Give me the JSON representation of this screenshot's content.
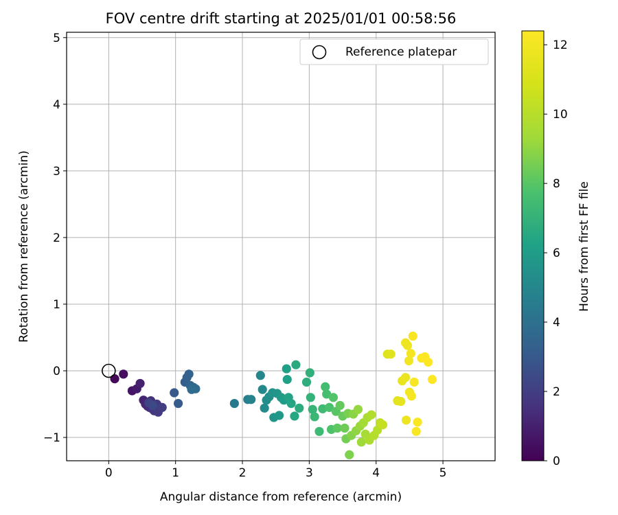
{
  "chart_data": {
    "type": "scatter",
    "title": "FOV centre drift starting at 2025/01/01 00:58:56",
    "xlabel": "Angular distance from reference (arcmin)",
    "ylabel": "Rotation from reference (arcmin)",
    "xlim": [
      -0.63,
      5.78
    ],
    "ylim": [
      -1.35,
      5.08
    ],
    "xticks": [
      0,
      1,
      2,
      3,
      4,
      5
    ],
    "yticks": [
      -1,
      0,
      1,
      2,
      3,
      4,
      5
    ],
    "grid": true,
    "legend": {
      "placement": "top-right",
      "entries": [
        "Reference platepar"
      ]
    },
    "colorbar": {
      "label": "Hours from first FF file",
      "range": [
        0,
        12.4
      ],
      "ticks": [
        0,
        2,
        4,
        6,
        8,
        10,
        12
      ],
      "colormap": "viridis"
    },
    "reference_point": {
      "x": 0,
      "y": 0
    },
    "points": [
      {
        "x": 0.09,
        "y": -0.12,
        "h": 0.2
      },
      {
        "x": 0.22,
        "y": -0.05,
        "h": 0.4
      },
      {
        "x": 0.35,
        "y": -0.3,
        "h": 0.6
      },
      {
        "x": 0.42,
        "y": -0.27,
        "h": 0.8
      },
      {
        "x": 0.47,
        "y": -0.19,
        "h": 1.0
      },
      {
        "x": 0.52,
        "y": -0.44,
        "h": 1.1
      },
      {
        "x": 0.55,
        "y": -0.5,
        "h": 1.2
      },
      {
        "x": 0.58,
        "y": -0.53,
        "h": 1.3
      },
      {
        "x": 0.61,
        "y": -0.55,
        "h": 1.4
      },
      {
        "x": 0.63,
        "y": -0.45,
        "h": 1.5
      },
      {
        "x": 0.65,
        "y": -0.57,
        "h": 1.6
      },
      {
        "x": 0.68,
        "y": -0.6,
        "h": 1.7
      },
      {
        "x": 0.72,
        "y": -0.5,
        "h": 1.8
      },
      {
        "x": 0.74,
        "y": -0.62,
        "h": 1.9
      },
      {
        "x": 0.8,
        "y": -0.55,
        "h": 2.0
      },
      {
        "x": 0.6,
        "y": -0.48,
        "h": 2.2
      },
      {
        "x": 0.66,
        "y": -0.52,
        "h": 2.4
      },
      {
        "x": 0.98,
        "y": -0.33,
        "h": 3.0
      },
      {
        "x": 1.04,
        "y": -0.49,
        "h": 3.1
      },
      {
        "x": 1.14,
        "y": -0.17,
        "h": 3.2
      },
      {
        "x": 1.17,
        "y": -0.1,
        "h": 3.3
      },
      {
        "x": 1.2,
        "y": -0.05,
        "h": 3.4
      },
      {
        "x": 1.22,
        "y": -0.22,
        "h": 3.5
      },
      {
        "x": 1.27,
        "y": -0.25,
        "h": 3.6
      },
      {
        "x": 1.3,
        "y": -0.27,
        "h": 3.7
      },
      {
        "x": 1.24,
        "y": -0.28,
        "h": 3.8
      },
      {
        "x": 1.88,
        "y": -0.49,
        "h": 4.4
      },
      {
        "x": 2.08,
        "y": -0.43,
        "h": 4.6
      },
      {
        "x": 2.13,
        "y": -0.43,
        "h": 4.8
      },
      {
        "x": 2.27,
        "y": -0.07,
        "h": 5.0
      },
      {
        "x": 2.3,
        "y": -0.28,
        "h": 5.1
      },
      {
        "x": 2.33,
        "y": -0.56,
        "h": 5.2
      },
      {
        "x": 2.36,
        "y": -0.44,
        "h": 5.3
      },
      {
        "x": 2.4,
        "y": -0.39,
        "h": 5.4
      },
      {
        "x": 2.45,
        "y": -0.33,
        "h": 5.5
      },
      {
        "x": 2.47,
        "y": -0.7,
        "h": 5.6
      },
      {
        "x": 2.52,
        "y": -0.34,
        "h": 5.7
      },
      {
        "x": 2.55,
        "y": -0.67,
        "h": 5.8
      },
      {
        "x": 2.58,
        "y": -0.4,
        "h": 5.9
      },
      {
        "x": 2.62,
        "y": -0.44,
        "h": 6.0
      },
      {
        "x": 2.66,
        "y": 0.03,
        "h": 6.1
      },
      {
        "x": 2.67,
        "y": -0.13,
        "h": 6.2
      },
      {
        "x": 2.69,
        "y": -0.4,
        "h": 6.3
      },
      {
        "x": 2.73,
        "y": -0.49,
        "h": 6.4
      },
      {
        "x": 2.78,
        "y": -0.68,
        "h": 6.5
      },
      {
        "x": 2.8,
        "y": 0.09,
        "h": 6.6
      },
      {
        "x": 2.85,
        "y": -0.56,
        "h": 6.7
      },
      {
        "x": 2.96,
        "y": -0.17,
        "h": 6.8
      },
      {
        "x": 3.01,
        "y": -0.03,
        "h": 6.9
      },
      {
        "x": 3.02,
        "y": -0.4,
        "h": 7.0
      },
      {
        "x": 3.05,
        "y": -0.58,
        "h": 7.1
      },
      {
        "x": 3.08,
        "y": -0.69,
        "h": 7.2
      },
      {
        "x": 3.15,
        "y": -0.91,
        "h": 7.3
      },
      {
        "x": 3.2,
        "y": -0.57,
        "h": 7.4
      },
      {
        "x": 3.24,
        "y": -0.24,
        "h": 7.5
      },
      {
        "x": 3.26,
        "y": -0.35,
        "h": 7.6
      },
      {
        "x": 3.3,
        "y": -0.55,
        "h": 7.7
      },
      {
        "x": 3.33,
        "y": -0.88,
        "h": 7.8
      },
      {
        "x": 3.36,
        "y": -0.4,
        "h": 7.9
      },
      {
        "x": 3.4,
        "y": -0.61,
        "h": 8.0
      },
      {
        "x": 3.42,
        "y": -0.86,
        "h": 8.1
      },
      {
        "x": 3.46,
        "y": -0.52,
        "h": 8.2
      },
      {
        "x": 3.5,
        "y": -0.68,
        "h": 8.3
      },
      {
        "x": 3.53,
        "y": -0.86,
        "h": 8.4
      },
      {
        "x": 3.55,
        "y": -1.02,
        "h": 8.5
      },
      {
        "x": 3.58,
        "y": -0.64,
        "h": 8.6
      },
      {
        "x": 3.6,
        "y": -1.26,
        "h": 8.7
      },
      {
        "x": 3.63,
        "y": -0.97,
        "h": 8.8
      },
      {
        "x": 3.66,
        "y": -0.65,
        "h": 8.9
      },
      {
        "x": 3.7,
        "y": -0.9,
        "h": 9.0
      },
      {
        "x": 3.73,
        "y": -0.58,
        "h": 9.1
      },
      {
        "x": 3.76,
        "y": -0.83,
        "h": 9.2
      },
      {
        "x": 3.78,
        "y": -1.07,
        "h": 9.3
      },
      {
        "x": 3.81,
        "y": -0.78,
        "h": 9.4
      },
      {
        "x": 3.84,
        "y": -0.95,
        "h": 9.5
      },
      {
        "x": 3.87,
        "y": -0.7,
        "h": 9.6
      },
      {
        "x": 3.9,
        "y": -1.04,
        "h": 9.7
      },
      {
        "x": 3.93,
        "y": -0.66,
        "h": 9.8
      },
      {
        "x": 3.97,
        "y": -0.97,
        "h": 9.9
      },
      {
        "x": 4.02,
        "y": -0.89,
        "h": 10.0
      },
      {
        "x": 4.06,
        "y": -0.78,
        "h": 10.2
      },
      {
        "x": 4.1,
        "y": -0.81,
        "h": 10.4
      },
      {
        "x": 4.17,
        "y": 0.25,
        "h": 11.2
      },
      {
        "x": 4.22,
        "y": 0.25,
        "h": 11.3
      },
      {
        "x": 4.32,
        "y": -0.45,
        "h": 11.4
      },
      {
        "x": 4.37,
        "y": -0.46,
        "h": 11.5
      },
      {
        "x": 4.39,
        "y": -0.15,
        "h": 11.6
      },
      {
        "x": 4.44,
        "y": -0.1,
        "h": 11.7
      },
      {
        "x": 4.45,
        "y": -0.74,
        "h": 11.8
      },
      {
        "x": 4.47,
        "y": 0.38,
        "h": 11.9
      },
      {
        "x": 4.5,
        "y": -0.32,
        "h": 12.0
      },
      {
        "x": 4.53,
        "y": -0.38,
        "h": 12.1
      },
      {
        "x": 4.55,
        "y": 0.52,
        "h": 12.2
      },
      {
        "x": 4.57,
        "y": -0.17,
        "h": 12.2
      },
      {
        "x": 4.6,
        "y": -0.91,
        "h": 12.3
      },
      {
        "x": 4.62,
        "y": -0.77,
        "h": 12.3
      },
      {
        "x": 4.68,
        "y": 0.19,
        "h": 12.3
      },
      {
        "x": 4.73,
        "y": 0.21,
        "h": 12.4
      },
      {
        "x": 4.78,
        "y": 0.13,
        "h": 12.4
      },
      {
        "x": 4.84,
        "y": -0.13,
        "h": 12.4
      },
      {
        "x": 4.44,
        "y": 0.42,
        "h": 11.8
      },
      {
        "x": 4.49,
        "y": 0.15,
        "h": 12.0
      },
      {
        "x": 4.52,
        "y": 0.26,
        "h": 12.1
      }
    ]
  }
}
